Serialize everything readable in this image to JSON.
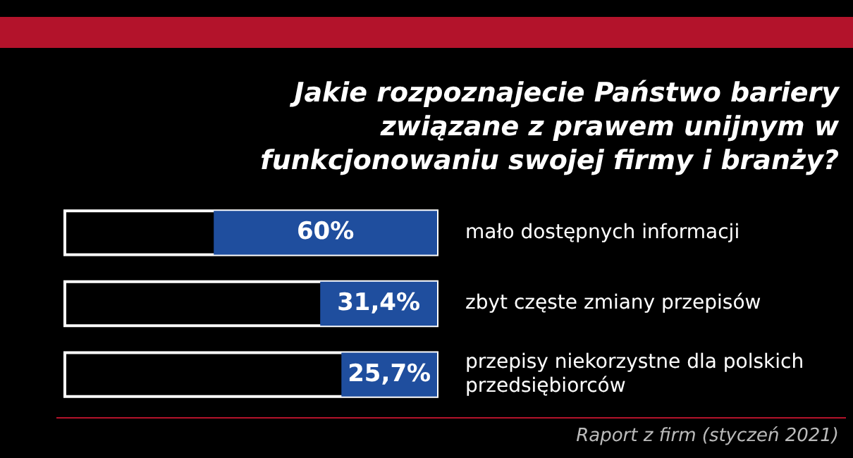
{
  "chart_data": {
    "type": "bar",
    "orientation": "horizontal",
    "title": "Jakie rozpoznajecie Państwo bariery związane z prawem unijnym w funkcjonowaniu swojej firmy i branży?",
    "categories": [
      "mało dostępnych informacji",
      "zbyt częste zmiany przepisów",
      "przepisy niekorzystne dla polskich przedsiębiorców"
    ],
    "values": [
      60,
      31.4,
      25.7
    ],
    "value_labels": [
      "60%",
      "31,4%",
      "25,7%"
    ],
    "color": "#1f4e9e",
    "xlim": [
      100,
      0
    ],
    "legend": false,
    "annotations": [
      "Raport z firm (styczeń 2021)"
    ]
  }
}
